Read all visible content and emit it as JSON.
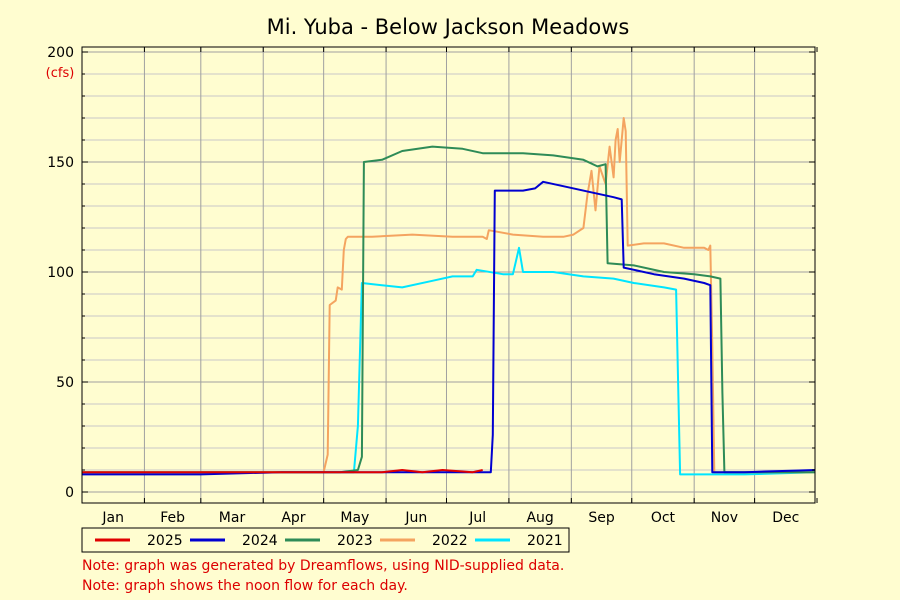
{
  "title": "Mi. Yuba - Below Jackson Meadows",
  "unit_label": "(cfs)",
  "notes": [
    "Note: graph was generated by Dreamflows, using NID-supplied data.",
    "Note: graph shows the noon flow for each day."
  ],
  "colors": {
    "background": "#fffdd0",
    "grid": "#bbbbbb",
    "note_text": "#dd0000"
  },
  "chart_data": {
    "type": "line",
    "title": "Mi. Yuba - Below Jackson Meadows",
    "ylabel": "(cfs)",
    "xlabel": "",
    "x_unit": "day of year",
    "ylim": [
      0,
      200
    ],
    "xlim": [
      1,
      365
    ],
    "yticks": [
      0,
      50,
      100,
      150,
      200
    ],
    "months": [
      "Jan",
      "Feb",
      "Mar",
      "Apr",
      "May",
      "Jun",
      "Jul",
      "Aug",
      "Sep",
      "Oct",
      "Nov",
      "Dec"
    ],
    "grid": true,
    "legend_position": "bottom",
    "series": [
      {
        "name": "2025",
        "color": "#e00000",
        "points": [
          [
            1,
            9
          ],
          [
            120,
            9
          ],
          [
            150,
            9
          ],
          [
            160,
            10
          ],
          [
            170,
            9
          ],
          [
            180,
            10
          ],
          [
            195,
            9
          ],
          [
            200,
            10
          ]
        ]
      },
      {
        "name": "2024",
        "color": "#0000d0",
        "points": [
          [
            1,
            8
          ],
          [
            60,
            8
          ],
          [
            100,
            9
          ],
          [
            200,
            9
          ],
          [
            204,
            9
          ],
          [
            205,
            26
          ],
          [
            206,
            137
          ],
          [
            220,
            137
          ],
          [
            226,
            138
          ],
          [
            230,
            141
          ],
          [
            240,
            139
          ],
          [
            255,
            136
          ],
          [
            265,
            134
          ],
          [
            269,
            133
          ],
          [
            270,
            102
          ],
          [
            285,
            99
          ],
          [
            300,
            97
          ],
          [
            310,
            95
          ],
          [
            313,
            94
          ],
          [
            314,
            9
          ],
          [
            330,
            9
          ],
          [
            365,
            10
          ]
        ]
      },
      {
        "name": "2023",
        "color": "#2e8b57",
        "points": [
          [
            1,
            9
          ],
          [
            100,
            9
          ],
          [
            129,
            9
          ],
          [
            138,
            10
          ],
          [
            140,
            16
          ],
          [
            141,
            150
          ],
          [
            150,
            151
          ],
          [
            160,
            155
          ],
          [
            175,
            157
          ],
          [
            190,
            156
          ],
          [
            200,
            154
          ],
          [
            220,
            154
          ],
          [
            235,
            153
          ],
          [
            250,
            151
          ],
          [
            257,
            148
          ],
          [
            261,
            149
          ],
          [
            262,
            104
          ],
          [
            275,
            103
          ],
          [
            290,
            100
          ],
          [
            305,
            99
          ],
          [
            313,
            98
          ],
          [
            318,
            97
          ],
          [
            319,
            45
          ],
          [
            320,
            9
          ],
          [
            330,
            9
          ],
          [
            365,
            9
          ]
        ]
      },
      {
        "name": "2022",
        "color": "#f4a460",
        "points": [
          [
            60,
            9
          ],
          [
            110,
            9
          ],
          [
            121,
            9
          ],
          [
            123,
            17
          ],
          [
            124,
            85
          ],
          [
            127,
            87
          ],
          [
            128,
            93
          ],
          [
            130,
            92
          ],
          [
            131,
            110
          ],
          [
            132,
            115
          ],
          [
            133,
            116
          ],
          [
            145,
            116
          ],
          [
            165,
            117
          ],
          [
            185,
            116
          ],
          [
            200,
            116
          ],
          [
            202,
            115
          ],
          [
            203,
            119
          ],
          [
            215,
            117
          ],
          [
            230,
            116
          ],
          [
            240,
            116
          ],
          [
            245,
            117
          ],
          [
            250,
            120
          ],
          [
            252,
            135
          ],
          [
            254,
            146
          ],
          [
            256,
            128
          ],
          [
            258,
            148
          ],
          [
            261,
            140
          ],
          [
            263,
            157
          ],
          [
            265,
            143
          ],
          [
            266,
            160
          ],
          [
            267,
            165
          ],
          [
            268,
            150
          ],
          [
            270,
            170
          ],
          [
            271,
            164
          ],
          [
            272,
            112
          ],
          [
            280,
            113
          ],
          [
            290,
            113
          ],
          [
            300,
            111
          ],
          [
            310,
            111
          ],
          [
            312,
            110
          ],
          [
            313,
            112
          ],
          [
            314,
            66
          ],
          [
            315,
            9
          ],
          [
            330,
            9
          ],
          [
            365,
            9
          ]
        ]
      },
      {
        "name": "2021",
        "color": "#00e5ff",
        "points": [
          [
            100,
            9
          ],
          [
            136,
            9
          ],
          [
            138,
            30
          ],
          [
            140,
            95
          ],
          [
            150,
            94
          ],
          [
            160,
            93
          ],
          [
            175,
            96
          ],
          [
            185,
            98
          ],
          [
            195,
            98
          ],
          [
            197,
            101
          ],
          [
            210,
            99
          ],
          [
            215,
            99
          ],
          [
            217,
            107
          ],
          [
            218,
            111
          ],
          [
            220,
            100
          ],
          [
            235,
            100
          ],
          [
            250,
            98
          ],
          [
            265,
            97
          ],
          [
            275,
            95
          ],
          [
            290,
            93
          ],
          [
            296,
            92
          ],
          [
            297,
            50
          ],
          [
            298,
            8
          ],
          [
            310,
            8
          ],
          [
            330,
            8
          ],
          [
            365,
            9
          ]
        ]
      }
    ]
  }
}
